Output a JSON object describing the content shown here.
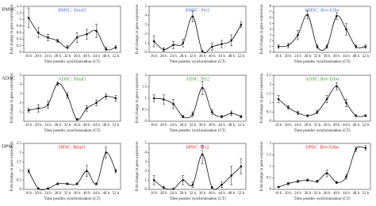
{
  "row_labels": [
    "BMSC",
    "ADSC",
    "DPSC"
  ],
  "chart_data": [
    {
      "type": "line",
      "title": "BMSC: Bmal1",
      "title_color": "#4f6fd8",
      "ylabel": "Fold change in gene expression",
      "xlabel": "Time postdex synchronisation (CT)",
      "categories": [
        "16 h",
        "20 h",
        "24 h",
        "28 h",
        "32 h",
        "36 h",
        "40 h",
        "44 h",
        "48 h",
        "52 h"
      ],
      "values": [
        1.05,
        0.6,
        0.45,
        0.35,
        0.15,
        0.45,
        0.55,
        0.65,
        0.1,
        0.15
      ],
      "errors": [
        0.3,
        0.15,
        0.1,
        0.05,
        0.05,
        0.15,
        0.15,
        0.2,
        0.05,
        0.05
      ],
      "ylim": [
        0,
        1.4
      ],
      "yticks": [
        0,
        0.2,
        0.4,
        0.6,
        0.8,
        1,
        1.2,
        1.4
      ]
    },
    {
      "type": "line",
      "title": "BMSC: Per2",
      "title_color": "#4f6fd8",
      "ylabel": "Fold change in gene expression",
      "xlabel": "Time postdex synchronisation (CT)",
      "categories": [
        "16 h",
        "20 h",
        "24 h",
        "28 h",
        "32 h",
        "36 h",
        "40 h",
        "44 h",
        "48 h",
        "52 h"
      ],
      "values": [
        1.2,
        0.3,
        0.8,
        1.0,
        3.9,
        0.1,
        0.6,
        0.9,
        1.3,
        3.0
      ],
      "errors": [
        0.6,
        0.2,
        0.4,
        0.4,
        0.6,
        0.1,
        0.4,
        0.4,
        0.6,
        0.3
      ],
      "ylim": [
        0,
        5
      ],
      "yticks": [
        0,
        1,
        2,
        3,
        4,
        5
      ]
    },
    {
      "type": "line",
      "title": "BMSC: Rev-Erbα",
      "title_color": "#4f6fd8",
      "ylabel": "Fold change in gene expression",
      "xlabel": "Time postdex synchronisation (CT)",
      "categories": [
        "16 h",
        "20 h",
        "24 h",
        "28 h",
        "32 h",
        "36 h",
        "40 h",
        "44 h",
        "48 h",
        "52 h"
      ],
      "values": [
        1.0,
        1.2,
        3.0,
        6.5,
        1.0,
        1.0,
        6.3,
        4.0,
        1.0,
        1.0
      ],
      "errors": [
        0.3,
        0.4,
        0.8,
        0.7,
        0.3,
        0.3,
        0.6,
        1.0,
        0.3,
        0.3
      ],
      "ylim": [
        0,
        8
      ],
      "yticks": [
        0,
        1,
        2,
        3,
        4,
        5,
        6,
        7,
        8
      ]
    },
    {
      "type": "line",
      "title": "ADSC: Bmal1",
      "title_color": "#3f9a3a",
      "ylabel": "Fold change in gene expression",
      "xlabel": "Time postdex synchronisation (CT)",
      "categories": [
        "16 h",
        "20 h",
        "24 h",
        "28 h",
        "32 h",
        "36 h",
        "40 h",
        "44 h",
        "48 h",
        "52 h"
      ],
      "values": [
        1.2,
        1.4,
        1.8,
        4.1,
        2.8,
        0.2,
        1.4,
        2.0,
        2.7,
        2.5
      ],
      "errors": [
        0.2,
        0.4,
        0.4,
        0.2,
        0.3,
        0.1,
        0.3,
        0.3,
        0.3,
        0.3
      ],
      "ylim": [
        0,
        5
      ],
      "yticks": [
        1,
        2,
        3,
        4,
        5
      ]
    },
    {
      "type": "line",
      "title": "ADSC: Per2",
      "title_color": "#3f9a3a",
      "ylabel": "Fold change in gene expression",
      "xlabel": "Time postdex synchronisation (CT)",
      "categories": [
        "16 h",
        "20 h",
        "24 h",
        "28 h",
        "32 h",
        "36 h",
        "40 h",
        "44 h",
        "48 h",
        "52 h"
      ],
      "values": [
        1.0,
        0.95,
        0.75,
        0.2,
        0.3,
        1.45,
        0.4,
        0.2,
        0.35,
        0.2
      ],
      "errors": [
        0.15,
        0.2,
        0.2,
        0.05,
        0.1,
        0.3,
        0.1,
        0.05,
        0.1,
        0.05
      ],
      "ylim": [
        0,
        2
      ],
      "yticks": [
        0,
        0.5,
        1,
        1.5,
        2
      ]
    },
    {
      "type": "line",
      "title": "ADSC: Rev-Erbα",
      "title_color": "#3f9a3a",
      "ylabel": "Fold change in gene expression",
      "xlabel": "Time postdex synchronisation (CT)",
      "categories": [
        "16 h",
        "20 h",
        "24 h",
        "28 h",
        "32 h",
        "36 h",
        "40 h",
        "44 h",
        "48 h",
        "52 h"
      ],
      "values": [
        1.2,
        0.75,
        0.45,
        0.3,
        0.5,
        1.2,
        1.9,
        1.0,
        0.3,
        0.3
      ],
      "errors": [
        0.2,
        0.1,
        0.1,
        0.05,
        0.1,
        0.2,
        0.2,
        0.2,
        0.05,
        0.05
      ],
      "ylim": [
        0,
        2.5
      ],
      "yticks": [
        0,
        0.5,
        1,
        1.5,
        2,
        2.5
      ]
    },
    {
      "type": "line",
      "title": "DPSC: Bmal1",
      "title_color": "#e02020",
      "ylabel": "Fold change in gene expression",
      "xlabel": "Time postdex synchronisation (CT)",
      "categories": [
        "16 h",
        "20 h",
        "24 h",
        "28 h",
        "32 h",
        "36 h",
        "40 h",
        "44 h",
        "48 h",
        "52 h"
      ],
      "values": [
        1.0,
        0.05,
        0.05,
        0.3,
        0.3,
        0.3,
        1.0,
        0.3,
        2.0,
        1.0
      ],
      "errors": [
        0.1,
        0.02,
        0.02,
        0.05,
        0.05,
        0.05,
        0.3,
        0.05,
        0.3,
        0.1
      ],
      "ylim": [
        0,
        2.5
      ],
      "yticks": [
        0,
        0.5,
        1,
        1.5,
        2,
        2.5
      ]
    },
    {
      "type": "line",
      "title": "DPSC: Per2",
      "title_color": "#e02020",
      "ylabel": "Fold change in gene expression",
      "xlabel": "Time postdex synchronisation (CT)",
      "categories": [
        "16 h",
        "20 h",
        "24 h",
        "28 h",
        "32 h",
        "36 h",
        "40 h",
        "44 h",
        "48 h",
        "52 h"
      ],
      "values": [
        1.0,
        0.2,
        0.05,
        1.0,
        0.5,
        3.8,
        0.2,
        0.5,
        1.5,
        2.5
      ],
      "errors": [
        0.5,
        0.1,
        0.05,
        0.5,
        0.3,
        1.0,
        0.1,
        0.3,
        1.0,
        0.8
      ],
      "ylim": [
        0,
        5
      ],
      "yticks": [
        0,
        1,
        2,
        3,
        4,
        5
      ]
    },
    {
      "type": "line",
      "title": "DPSC: Rev-Erbα",
      "title_color": "#e02020",
      "ylabel": "Fold change in gene expression",
      "xlabel": "Time postdex synchronisation (CT)",
      "categories": [
        "16 h",
        "20 h",
        "24 h",
        "28 h",
        "32 h",
        "36 h",
        "40 h",
        "44 h",
        "48 h",
        "52 h"
      ],
      "values": [
        0.1,
        0.25,
        0.35,
        0.4,
        0.35,
        0.7,
        0.3,
        0.55,
        1.75,
        1.8
      ],
      "errors": [
        0.02,
        0.05,
        0.05,
        0.05,
        0.05,
        0.15,
        0.05,
        0.1,
        0.1,
        0.1
      ],
      "ylim": [
        0,
        2
      ],
      "yticks": [
        0,
        0.5,
        1,
        1.5,
        2
      ]
    }
  ]
}
